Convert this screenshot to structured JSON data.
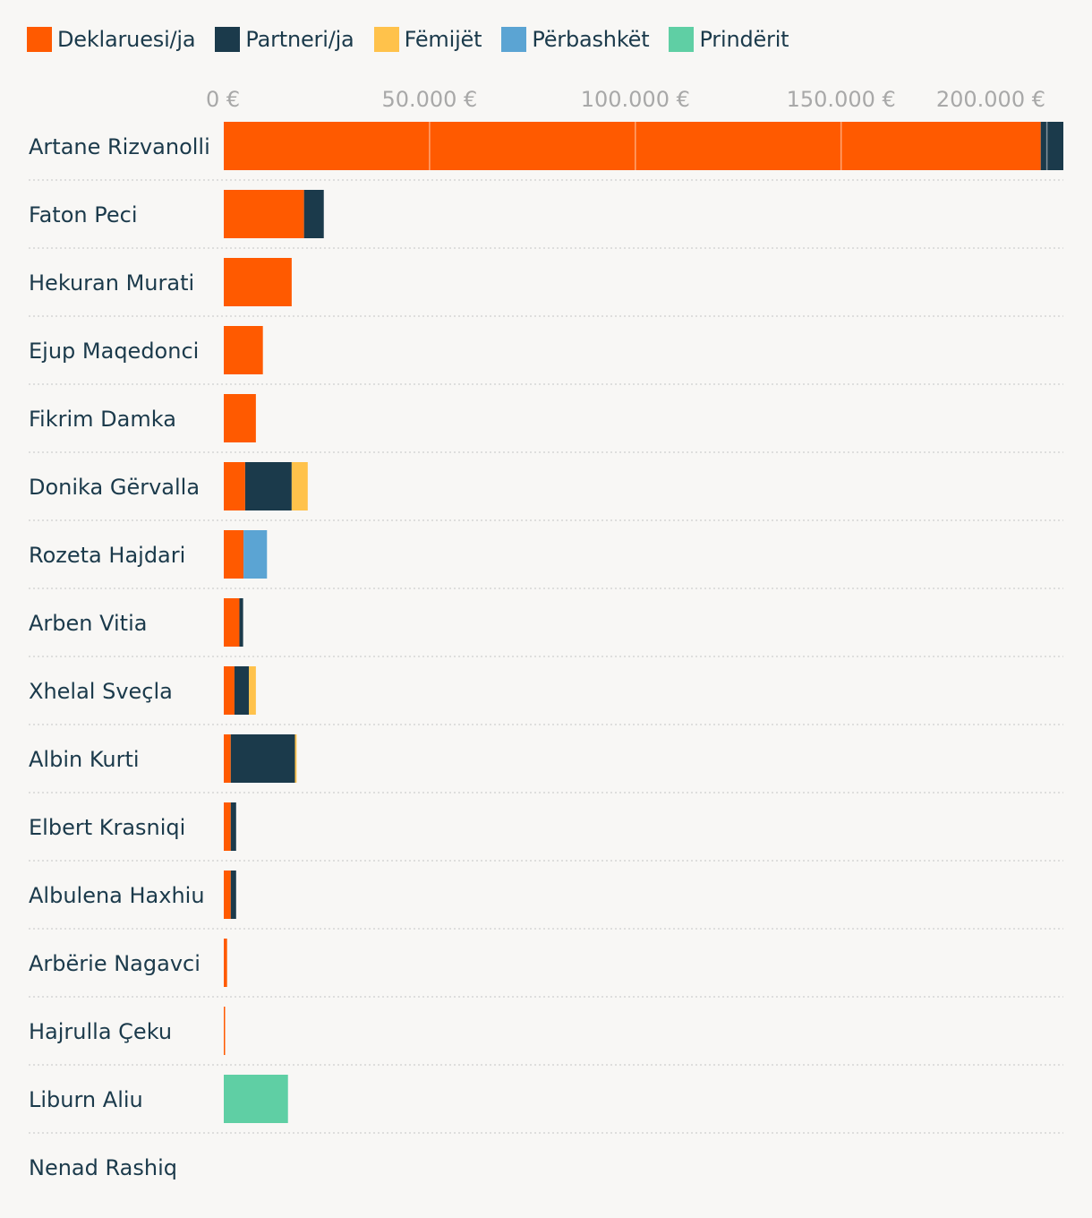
{
  "chart_data": {
    "type": "bar",
    "orientation": "horizontal",
    "stacked": true,
    "title": "",
    "xlabel": "",
    "ylabel": "",
    "xlim": [
      0,
      204000
    ],
    "x_ticks": [
      0,
      50000,
      100000,
      150000,
      200000
    ],
    "x_tick_labels": [
      "0 €",
      "50.000 €",
      "100.000 €",
      "150.000 €",
      "200.000 €"
    ],
    "grid": "vertical gridlines drawn only over bars",
    "legend_position": "top",
    "categories": [
      "Artane Rizvanolli",
      "Faton Peci",
      "Hekuran Murati",
      "Ejup Maqedonci",
      "Fikrim Damka",
      "Donika Gërvalla",
      "Rozeta Hajdari",
      "Arben Vitia",
      "Xhelal Sveçla",
      "Albin Kurti",
      "Elbert Krasniqi",
      "Albulena Haxhiu",
      "Arbërie Nagavci",
      "Hajrulla Çeku",
      "Liburn Aliu",
      "Nenad Rashiq"
    ],
    "series": [
      {
        "name": "Deklaruesi/ja",
        "color": "#ff5a00",
        "values": [
          198500,
          19500,
          16500,
          9500,
          7800,
          5200,
          4800,
          3800,
          2600,
          1700,
          1700,
          1700,
          800,
          300,
          0,
          0
        ]
      },
      {
        "name": "Partneri/ja",
        "color": "#1b3a4b",
        "values": [
          5500,
          4800,
          0,
          0,
          0,
          11300,
          0,
          900,
          3500,
          15600,
          1300,
          1300,
          0,
          0,
          0,
          0
        ]
      },
      {
        "name": "Fëmijët",
        "color": "#ffc24b",
        "values": [
          0,
          0,
          0,
          0,
          0,
          3900,
          0,
          0,
          1700,
          400,
          0,
          0,
          0,
          0,
          0,
          0
        ]
      },
      {
        "name": "Përbashkët",
        "color": "#5ba4d3",
        "values": [
          0,
          0,
          0,
          0,
          0,
          0,
          5700,
          0,
          0,
          0,
          0,
          0,
          0,
          0,
          0,
          0
        ]
      },
      {
        "name": "Prindërit",
        "color": "#5fcfa4",
        "values": [
          0,
          0,
          0,
          0,
          0,
          0,
          0,
          0,
          0,
          0,
          0,
          0,
          0,
          0,
          15600,
          0
        ]
      }
    ]
  }
}
